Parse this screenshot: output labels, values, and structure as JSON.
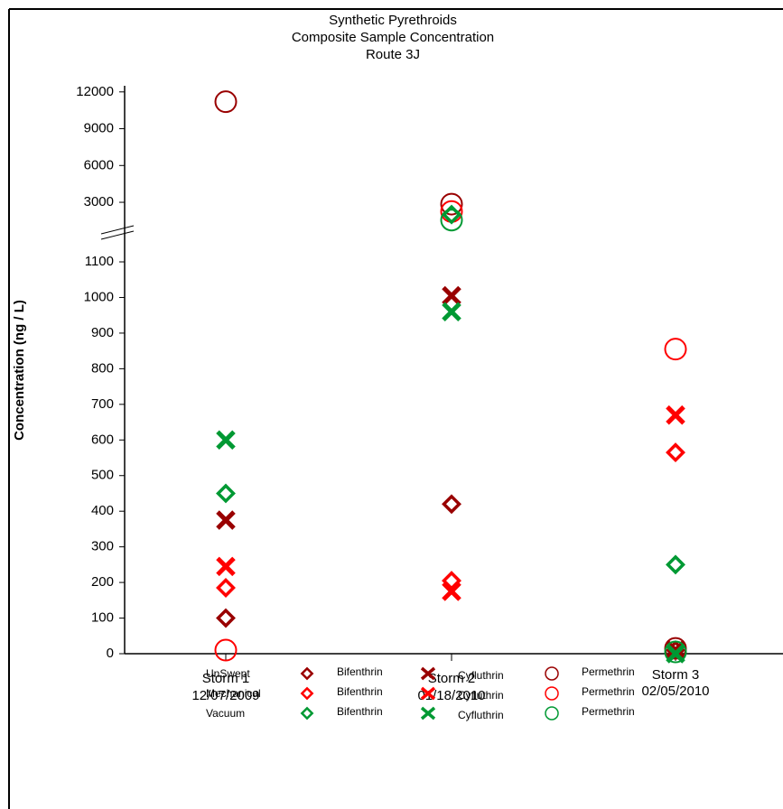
{
  "chart_data": {
    "type": "scatter",
    "title_lines": [
      "Synthetic Pyrethroids",
      "Composite Sample Concentration",
      "Route 3J"
    ],
    "y_label": "Concentration (ng / L)",
    "categories": [
      "Storm 1",
      "Storm 2",
      "Storm 3"
    ],
    "category_dates": [
      "12/07/2009",
      "01/18/2010",
      "02/05/2010"
    ],
    "y_segments": [
      {
        "ylim": [
          0,
          1150
        ],
        "yticks": [
          0,
          100,
          200,
          300,
          400,
          500,
          600,
          700,
          800,
          900,
          1000,
          1100
        ]
      },
      {
        "ylim": [
          500,
          12500
        ],
        "yticks": [
          3000,
          6000,
          9000,
          12000
        ]
      }
    ],
    "groups": [
      {
        "label": "UnSwept",
        "color": "#990000",
        "series": [
          {
            "name": "Bifenthrin",
            "marker": "diamond",
            "values": [
              100,
              420,
              10
            ]
          },
          {
            "name": "Cyfluthrin",
            "marker": "x",
            "values": [
              375,
              1005,
              10
            ]
          },
          {
            "name": "Permethrin",
            "marker": "circle",
            "values": [
              11200,
              2850,
              15
            ]
          }
        ]
      },
      {
        "label": "Mechanical",
        "color": "#ff0000",
        "series": [
          {
            "name": "Bifenthrin",
            "marker": "diamond",
            "values": [
              185,
              205,
              565
            ]
          },
          {
            "name": "Cyfluthrin",
            "marker": "x",
            "values": [
              245,
              175,
              670
            ]
          },
          {
            "name": "Permethrin",
            "marker": "circle",
            "values": [
              10,
              2250,
              855
            ]
          }
        ]
      },
      {
        "label": "Vacuum",
        "color": "#009933",
        "series": [
          {
            "name": "Bifenthrin",
            "marker": "diamond",
            "values": [
              450,
              2000,
              250
            ]
          },
          {
            "name": "Cyfluthrin",
            "marker": "x",
            "values": [
              600,
              960,
              0
            ]
          },
          {
            "name": "Permethrin",
            "marker": "circle",
            "values": [
              null,
              1550,
              5
            ]
          }
        ]
      }
    ]
  }
}
